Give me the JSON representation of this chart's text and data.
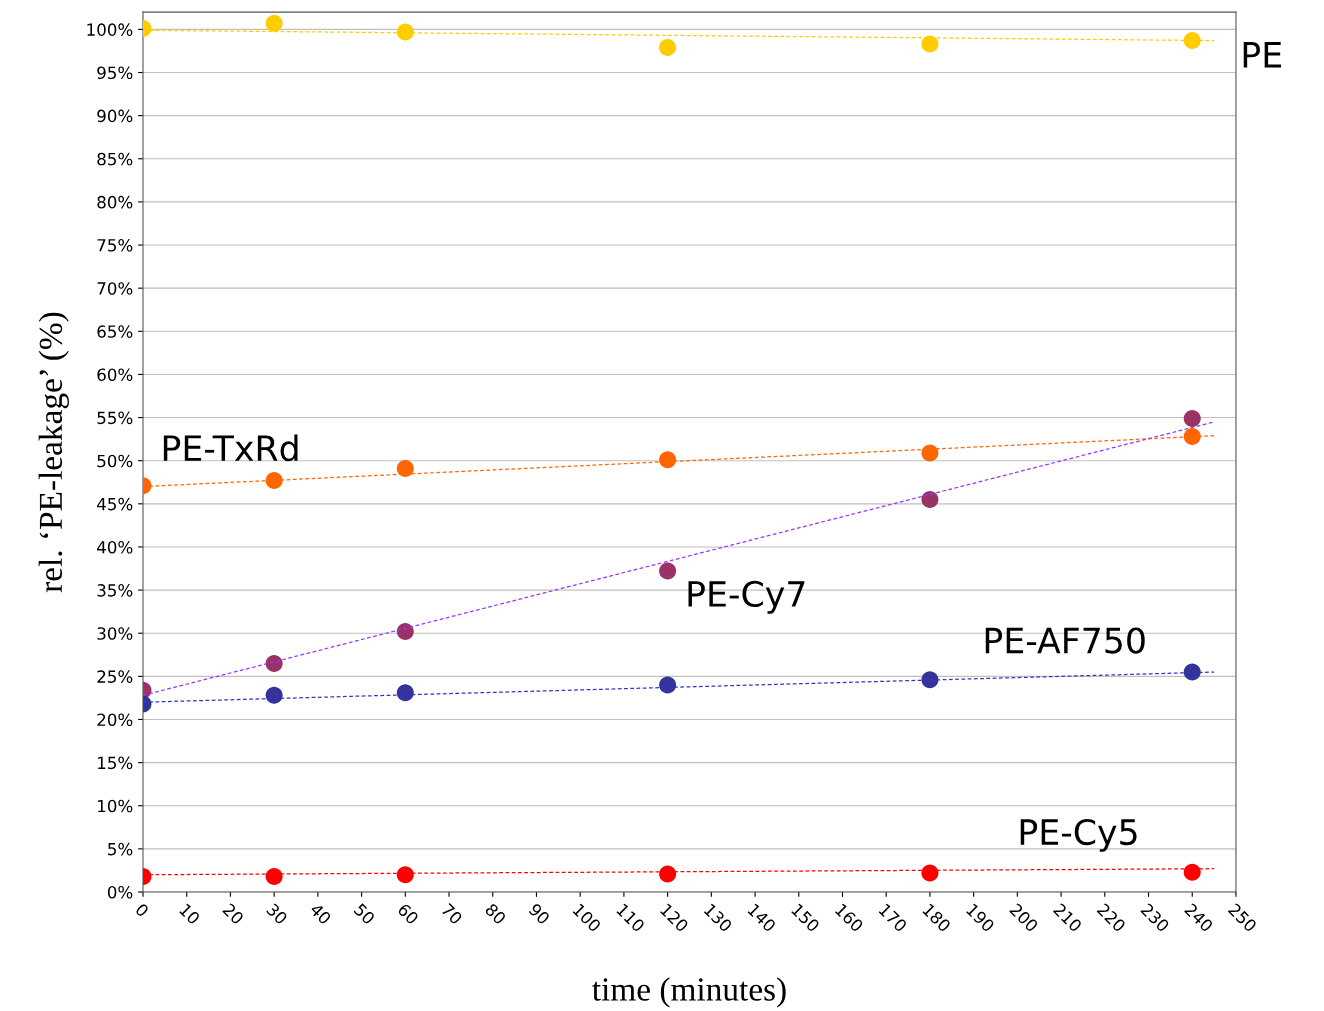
{
  "chart_data": {
    "type": "scatter",
    "xlabel": "time (minutes)",
    "ylabel": "rel. ‘PE-leakage’ (%)",
    "xlim": [
      0,
      250
    ],
    "xticks": [
      0,
      10,
      20,
      30,
      40,
      50,
      60,
      70,
      80,
      90,
      100,
      110,
      120,
      130,
      140,
      150,
      160,
      170,
      180,
      190,
      200,
      210,
      220,
      230,
      240,
      250
    ],
    "ylim": [
      0,
      102
    ],
    "yticks": [
      {
        "value": 0,
        "label": "0%"
      },
      {
        "value": 5,
        "label": "5%"
      },
      {
        "value": 10,
        "label": "10%"
      },
      {
        "value": 15,
        "label": "15%"
      },
      {
        "value": 20,
        "label": "20%"
      },
      {
        "value": 25,
        "label": "25%"
      },
      {
        "value": 30,
        "label": "30%"
      },
      {
        "value": 35,
        "label": "35%"
      },
      {
        "value": 40,
        "label": "40%"
      },
      {
        "value": 45,
        "label": "45%"
      },
      {
        "value": 50,
        "label": "50%"
      },
      {
        "value": 55,
        "label": "55%"
      },
      {
        "value": 60,
        "label": "60%"
      },
      {
        "value": 65,
        "label": "65%"
      },
      {
        "value": 70,
        "label": "70%"
      },
      {
        "value": 75,
        "label": "75%"
      },
      {
        "value": 80,
        "label": "80%"
      },
      {
        "value": 85,
        "label": "85%"
      },
      {
        "value": 90,
        "label": "90%"
      },
      {
        "value": 95,
        "label": "95%"
      },
      {
        "value": 100,
        "label": "100%"
      }
    ],
    "grid": "y",
    "legend": false,
    "marker": "circle",
    "series": [
      {
        "name": "PE",
        "color": "#ffcc00",
        "x": [
          0,
          30,
          60,
          120,
          180,
          240
        ],
        "values": [
          100.1,
          100.7,
          99.7,
          97.9,
          98.3,
          98.7
        ]
      },
      {
        "name": "PE-TxRd",
        "color": "#ff6600",
        "x": [
          0,
          30,
          60,
          120,
          180,
          240
        ],
        "values": [
          47.1,
          47.7,
          49.1,
          50.1,
          50.9,
          52.8
        ]
      },
      {
        "name": "PE-Cy7",
        "color": "#993366",
        "x": [
          0,
          30,
          60,
          120,
          180,
          240
        ],
        "values": [
          23.4,
          26.5,
          30.2,
          37.2,
          45.5,
          54.9
        ]
      },
      {
        "name": "PE-AF750",
        "color": "#333399",
        "x": [
          0,
          30,
          60,
          120,
          180,
          240
        ],
        "values": [
          21.8,
          22.8,
          23.1,
          24.0,
          24.6,
          25.5
        ]
      },
      {
        "name": "PE-Cy5",
        "color": "#ff0000",
        "x": [
          0,
          30,
          60,
          120,
          180,
          240
        ],
        "values": [
          1.8,
          1.8,
          2.0,
          2.1,
          2.2,
          2.3
        ]
      },
      {
        "type": "line",
        "color": "#ffcc00",
        "line_style": "dashed",
        "marker": "none",
        "x": [
          0,
          245
        ],
        "values": [
          99.9,
          98.7
        ]
      },
      {
        "type": "line",
        "color": "#ff6600",
        "line_style": "dashed",
        "marker": "none",
        "x": [
          0,
          245
        ],
        "values": [
          47.0,
          52.9
        ]
      },
      {
        "type": "line",
        "color": "#9933ff",
        "line_style": "dashed",
        "marker": "none",
        "x": [
          0,
          245
        ],
        "values": [
          22.8,
          54.5
        ]
      },
      {
        "type": "line",
        "color": "#3333cc",
        "line_style": "dashed",
        "marker": "none",
        "x": [
          0,
          245
        ],
        "values": [
          22.0,
          25.5
        ]
      },
      {
        "type": "line",
        "color": "#ff0000",
        "line_style": "dashed",
        "marker": "none",
        "x": [
          0,
          245
        ],
        "values": [
          2.0,
          2.7
        ]
      }
    ]
  }
}
